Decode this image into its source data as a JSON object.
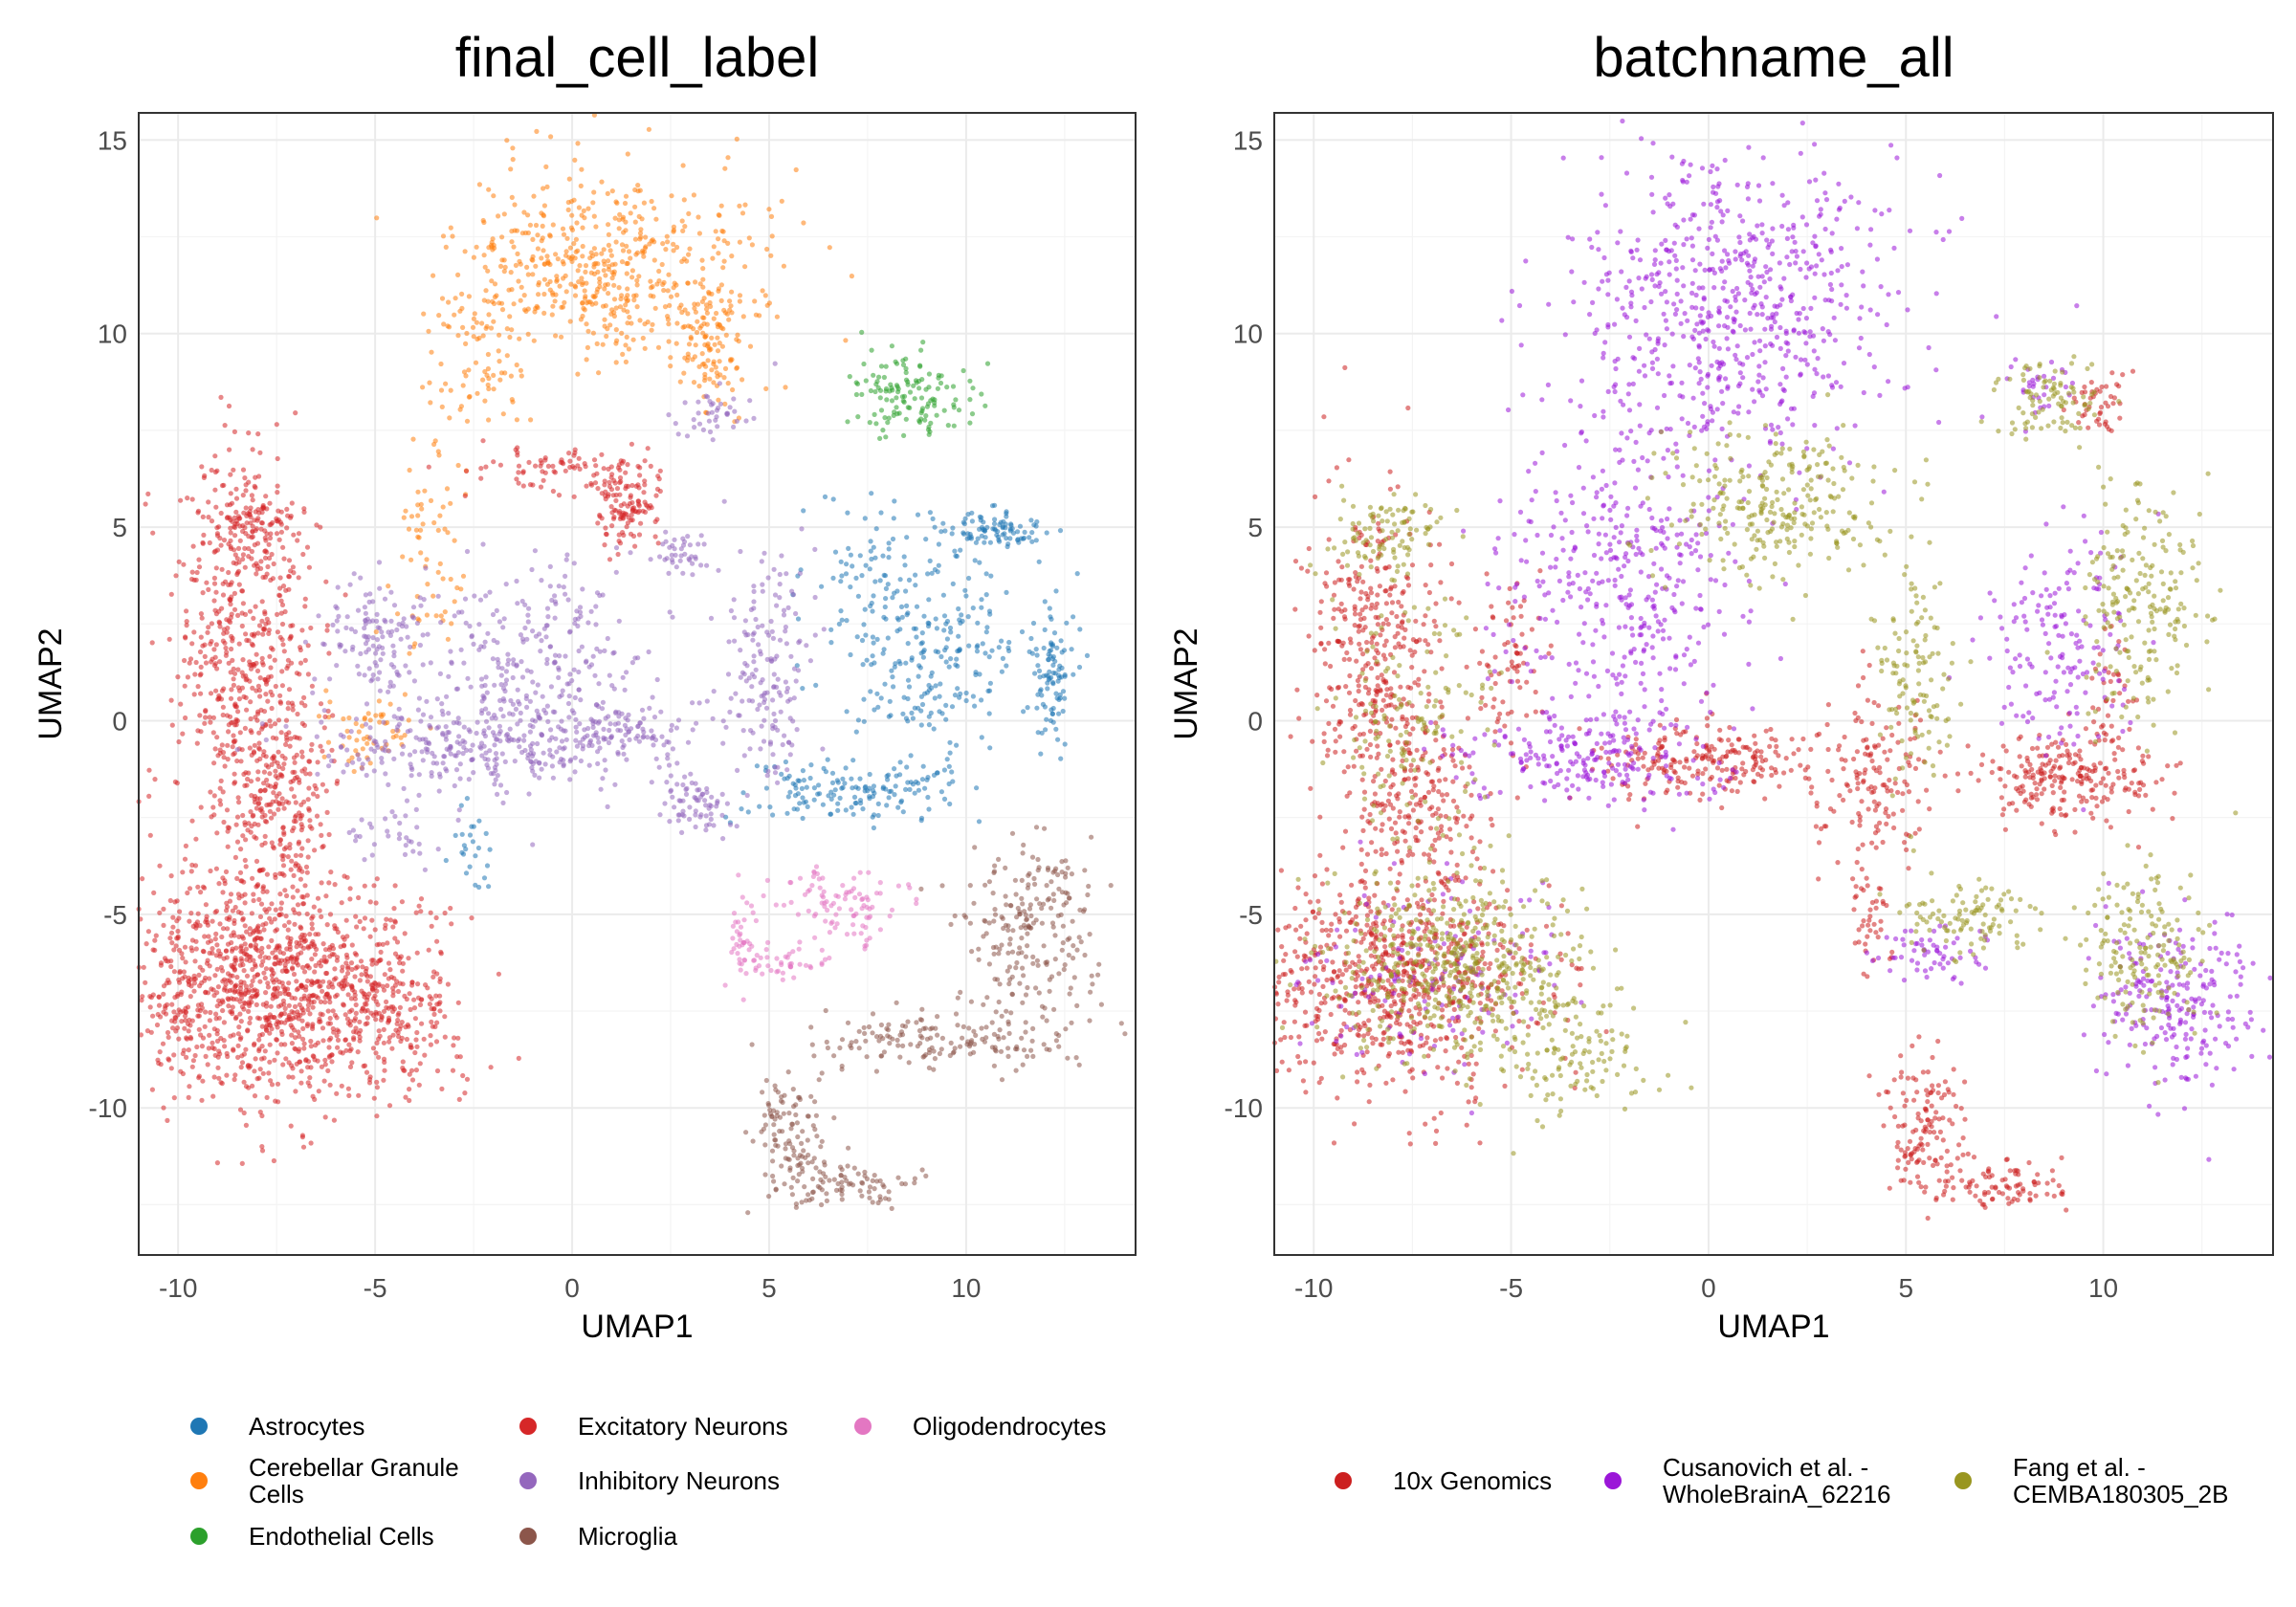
{
  "chart_data": [
    {
      "type": "scatter",
      "title": "final_cell_label",
      "xlabel": "UMAP1",
      "ylabel": "UMAP2",
      "xlim": [
        -11,
        14.3
      ],
      "ylim": [
        -13.8,
        15.7
      ],
      "xticks": [
        -10,
        -5,
        0,
        5,
        10
      ],
      "yticks": [
        -10,
        -5,
        0,
        5,
        10,
        15
      ],
      "grid": true,
      "legend_position": "bottom",
      "legend": [
        "Astrocytes",
        "Cerebellar Granule Cells",
        "Endothelial Cells",
        "Excitatory Neurons",
        "Inhibitory Neurons",
        "Microglia",
        "Oligodendrocytes"
      ],
      "legend_lines": [
        [
          "Astrocytes"
        ],
        [
          "Cerebellar Granule",
          "Cells"
        ],
        [
          "Endothelial Cells"
        ],
        [
          "Excitatory Neurons"
        ],
        [
          "Inhibitory Neurons"
        ],
        [
          "Microglia"
        ],
        [
          "Oligodendrocytes"
        ]
      ],
      "colors": [
        "#1f77b4",
        "#ff7f0e",
        "#2ca02c",
        "#d62728",
        "#9467bd",
        "#8c564b",
        "#e377c2"
      ],
      "series": [
        {
          "name": "Astrocytes",
          "color": "#1f77b4",
          "clusters": [
            {
              "x": 9.0,
              "y": 2.0,
              "sx": 1.3,
              "sy": 1.4,
              "n": 260
            },
            {
              "x": 10.6,
              "y": 4.9,
              "sx": 0.7,
              "sy": 0.25,
              "n": 90
            },
            {
              "x": 12.2,
              "y": 1.2,
              "sx": 0.3,
              "sy": 0.9,
              "n": 90
            },
            {
              "x": 7.0,
              "y": -1.8,
              "sx": 1.4,
              "sy": 0.4,
              "n": 150
            },
            {
              "x": 7.3,
              "y": 3.8,
              "sx": 0.7,
              "sy": 1.2,
              "n": 40
            },
            {
              "x": -2.6,
              "y": -3.5,
              "sx": 0.3,
              "sy": 0.7,
              "n": 25
            }
          ]
        },
        {
          "name": "Cerebellar Granule Cells",
          "color": "#ff7f0e",
          "clusters": [
            {
              "x": 1.0,
              "y": 11.6,
              "sx": 1.9,
              "sy": 1.3,
              "n": 520
            },
            {
              "x": 3.6,
              "y": 9.8,
              "sx": 0.5,
              "sy": 1.0,
              "n": 100
            },
            {
              "x": -2.3,
              "y": 10.0,
              "sx": 0.6,
              "sy": 1.5,
              "n": 90
            },
            {
              "x": -3.6,
              "y": 4.5,
              "sx": 0.5,
              "sy": 1.7,
              "n": 70
            },
            {
              "x": -5.0,
              "y": -0.4,
              "sx": 0.8,
              "sy": 0.6,
              "n": 55
            }
          ]
        },
        {
          "name": "Endothelial Cells",
          "color": "#2ca02c",
          "clusters": [
            {
              "x": 8.6,
              "y": 8.4,
              "sx": 0.8,
              "sy": 0.5,
              "n": 130
            }
          ]
        },
        {
          "name": "Excitatory Neurons",
          "color": "#d62728",
          "clusters": [
            {
              "x": -7.8,
              "y": -6.8,
              "sx": 1.9,
              "sy": 1.5,
              "n": 1200
            },
            {
              "x": -8.3,
              "y": 2.0,
              "sx": 0.9,
              "sy": 2.4,
              "n": 550
            },
            {
              "x": -7.5,
              "y": -2.0,
              "sx": 0.8,
              "sy": 1.2,
              "n": 220
            },
            {
              "x": -8.0,
              "y": 5.2,
              "sx": 0.6,
              "sy": 0.3,
              "n": 70
            },
            {
              "x": 1.4,
              "y": 5.7,
              "sx": 0.5,
              "sy": 0.6,
              "n": 130
            },
            {
              "x": -0.6,
              "y": 6.5,
              "sx": 1.1,
              "sy": 0.25,
              "n": 70
            },
            {
              "x": -4.8,
              "y": -7.6,
              "sx": 1.0,
              "sy": 1.0,
              "n": 220
            }
          ]
        },
        {
          "name": "Inhibitory Neurons",
          "color": "#9467bd",
          "clusters": [
            {
              "x": -1.0,
              "y": 1.2,
              "sx": 1.5,
              "sy": 1.5,
              "n": 320
            },
            {
              "x": -3.0,
              "y": -0.7,
              "sx": 1.8,
              "sy": 0.45,
              "n": 220
            },
            {
              "x": 1.3,
              "y": -0.3,
              "sx": 0.9,
              "sy": 0.4,
              "n": 110
            },
            {
              "x": 5.0,
              "y": 1.3,
              "sx": 0.5,
              "sy": 1.6,
              "n": 160
            },
            {
              "x": 3.2,
              "y": -2.1,
              "sx": 0.4,
              "sy": 0.4,
              "n": 70
            },
            {
              "x": -5.5,
              "y": 2.3,
              "sx": 0.6,
              "sy": 0.7,
              "n": 70
            },
            {
              "x": -4.3,
              "y": 1.6,
              "sx": 0.4,
              "sy": 0.9,
              "n": 55
            },
            {
              "x": 2.8,
              "y": 4.3,
              "sx": 0.4,
              "sy": 0.3,
              "n": 40
            },
            {
              "x": 3.6,
              "y": 7.9,
              "sx": 0.6,
              "sy": 0.4,
              "n": 40
            },
            {
              "x": -4.5,
              "y": -3.0,
              "sx": 0.6,
              "sy": 0.5,
              "n": 35
            }
          ]
        },
        {
          "name": "Microglia",
          "color": "#8c564b",
          "clusters": [
            {
              "x": 11.5,
              "y": -5.8,
              "sx": 0.9,
              "sy": 1.3,
              "n": 200
            },
            {
              "x": 9.5,
              "y": -8.3,
              "sx": 1.7,
              "sy": 0.35,
              "n": 150
            },
            {
              "x": 5.6,
              "y": -10.6,
              "sx": 0.5,
              "sy": 0.9,
              "n": 110
            },
            {
              "x": 7.1,
              "y": -12.0,
              "sx": 0.9,
              "sy": 0.3,
              "n": 80
            },
            {
              "x": 12.3,
              "y": -4.4,
              "sx": 0.3,
              "sy": 0.5,
              "n": 30
            }
          ]
        },
        {
          "name": "Oligodendrocytes",
          "color": "#e377c2",
          "clusters": [
            {
              "x": 6.8,
              "y": -4.8,
              "sx": 0.8,
              "sy": 0.5,
              "n": 95
            },
            {
              "x": 5.4,
              "y": -6.2,
              "sx": 0.6,
              "sy": 0.3,
              "n": 45
            },
            {
              "x": 4.3,
              "y": -5.7,
              "sx": 0.2,
              "sy": 0.6,
              "n": 35
            }
          ]
        }
      ]
    },
    {
      "type": "scatter",
      "title": "batchname_all",
      "xlabel": "UMAP1",
      "ylabel": "UMAP2",
      "xlim": [
        -11,
        14.3
      ],
      "ylim": [
        -13.8,
        15.7
      ],
      "xticks": [
        -10,
        -5,
        0,
        5,
        10
      ],
      "yticks": [
        -10,
        -5,
        0,
        5,
        10,
        15
      ],
      "grid": true,
      "legend_position": "bottom",
      "legend": [
        "10x Genomics",
        "Cusanovich et al. - WholeBrainA_62216",
        "Fang et al. - CEMBA180305_2B"
      ],
      "legend_lines": [
        [
          "10x Genomics"
        ],
        [
          "Cusanovich et al. -",
          "WholeBrainA_62216"
        ],
        [
          "Fang et al. -",
          "CEMBA180305_2B"
        ]
      ],
      "colors": [
        "#cc1f1f",
        "#9b16d8",
        "#999620"
      ],
      "series": [
        {
          "name": "10x Genomics",
          "color": "#cc1f1f",
          "clusters": [
            {
              "x": -8.0,
              "y": -6.6,
              "sx": 1.8,
              "sy": 1.5,
              "n": 760
            },
            {
              "x": -8.4,
              "y": 1.8,
              "sx": 0.9,
              "sy": 2.2,
              "n": 380
            },
            {
              "x": -7.3,
              "y": -2.2,
              "sx": 0.8,
              "sy": 1.1,
              "n": 160
            },
            {
              "x": -5.0,
              "y": 1.3,
              "sx": 0.5,
              "sy": 1.1,
              "n": 70
            },
            {
              "x": 0.0,
              "y": -1.0,
              "sx": 1.5,
              "sy": 0.5,
              "n": 220
            },
            {
              "x": 9.0,
              "y": -1.5,
              "sx": 1.3,
              "sy": 0.6,
              "n": 230
            },
            {
              "x": 10.2,
              "y": 0.5,
              "sx": 0.3,
              "sy": 0.8,
              "n": 40
            },
            {
              "x": 4.2,
              "y": -1.5,
              "sx": 0.7,
              "sy": 1.1,
              "n": 140
            },
            {
              "x": 5.5,
              "y": -10.4,
              "sx": 0.5,
              "sy": 0.9,
              "n": 130
            },
            {
              "x": 7.2,
              "y": -12.0,
              "sx": 1.0,
              "sy": 0.3,
              "n": 90
            },
            {
              "x": 4.1,
              "y": -5.2,
              "sx": 0.25,
              "sy": 0.6,
              "n": 40
            },
            {
              "x": 9.9,
              "y": 8.3,
              "sx": 0.4,
              "sy": 0.4,
              "n": 45
            }
          ]
        },
        {
          "name": "Cusanovich et al. - WholeBrainA_62216",
          "color": "#9b16d8",
          "clusters": [
            {
              "x": 0.8,
              "y": 10.8,
              "sx": 2.1,
              "sy": 2.0,
              "n": 650
            },
            {
              "x": -2.2,
              "y": 3.5,
              "sx": 1.6,
              "sy": 2.2,
              "n": 400
            },
            {
              "x": -3.0,
              "y": -1.0,
              "sx": 1.8,
              "sy": 0.6,
              "n": 200
            },
            {
              "x": 9.0,
              "y": 2.0,
              "sx": 0.9,
              "sy": 1.3,
              "n": 160
            },
            {
              "x": 11.8,
              "y": -7.2,
              "sx": 1.0,
              "sy": 1.1,
              "n": 230
            },
            {
              "x": 5.7,
              "y": -6.0,
              "sx": 0.7,
              "sy": 0.35,
              "n": 60
            },
            {
              "x": -7.0,
              "y": -6.5,
              "sx": 1.8,
              "sy": 1.4,
              "n": 140
            },
            {
              "x": 8.4,
              "y": 8.6,
              "sx": 0.4,
              "sy": 0.5,
              "n": 30
            }
          ]
        },
        {
          "name": "Fang et al. - CEMBA180305_2B",
          "color": "#999620",
          "clusters": [
            {
              "x": -6.4,
              "y": -6.3,
              "sx": 1.5,
              "sy": 1.2,
              "n": 500
            },
            {
              "x": 1.5,
              "y": 5.6,
              "sx": 1.4,
              "sy": 0.9,
              "n": 260
            },
            {
              "x": -8.2,
              "y": 4.7,
              "sx": 0.8,
              "sy": 0.6,
              "n": 100
            },
            {
              "x": 11.0,
              "y": 3.0,
              "sx": 0.8,
              "sy": 1.5,
              "n": 200
            },
            {
              "x": 11.0,
              "y": -6.0,
              "sx": 0.7,
              "sy": 1.1,
              "n": 170
            },
            {
              "x": 5.2,
              "y": 1.3,
              "sx": 0.5,
              "sy": 1.5,
              "n": 120
            },
            {
              "x": 6.6,
              "y": -5.0,
              "sx": 0.8,
              "sy": 0.5,
              "n": 100
            },
            {
              "x": 8.6,
              "y": 8.3,
              "sx": 0.7,
              "sy": 0.5,
              "n": 90
            },
            {
              "x": -7.5,
              "y": 0.0,
              "sx": 1.0,
              "sy": 1.5,
              "n": 140
            },
            {
              "x": -3.5,
              "y": -8.5,
              "sx": 1.0,
              "sy": 1.0,
              "n": 120
            }
          ]
        }
      ]
    }
  ]
}
